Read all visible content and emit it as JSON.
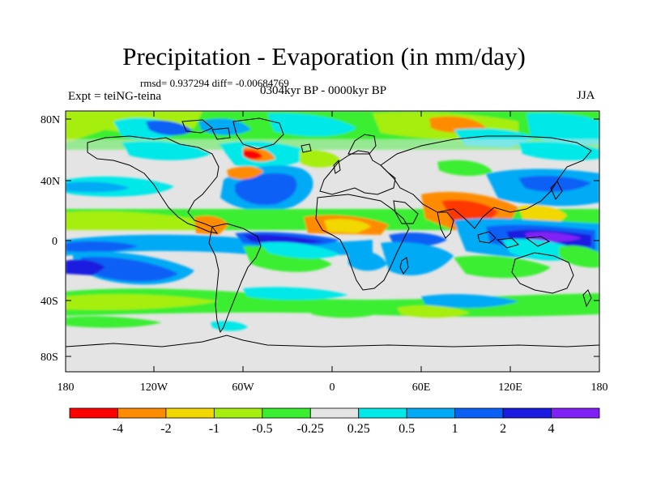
{
  "title": "Precipitation - Evaporation (in mm/day)",
  "stats": {
    "rmsd": "0.937294",
    "diff": "-0.00684769",
    "text": "rmsd= 0.937294 diff= -0.00684769"
  },
  "experiment": "Expt = teiNG-teina",
  "period": "0304kyr BP - 0000kyr BP",
  "season": "JJA",
  "lat_labels": [
    "80N",
    "40N",
    "0",
    "40S",
    "80S"
  ],
  "lon_labels": [
    "180",
    "120W",
    "60W",
    "0",
    "60E",
    "120E",
    "180"
  ],
  "colorbar": {
    "colors": [
      "#ff0000",
      "#ff8c00",
      "#f0d800",
      "#a6ee10",
      "#3aee30",
      "#e4e4e4",
      "#00e8e8",
      "#00aaf5",
      "#0a60f5",
      "#1c1ce0",
      "#8020f5"
    ],
    "labels": [
      "-4",
      "-2",
      "-1",
      "-0.5",
      "-0.25",
      "0.25",
      "0.5",
      "1",
      "2",
      "4"
    ]
  },
  "palette": {
    "ocean_neutral": "#e4e4e4",
    "border": "#000000"
  }
}
